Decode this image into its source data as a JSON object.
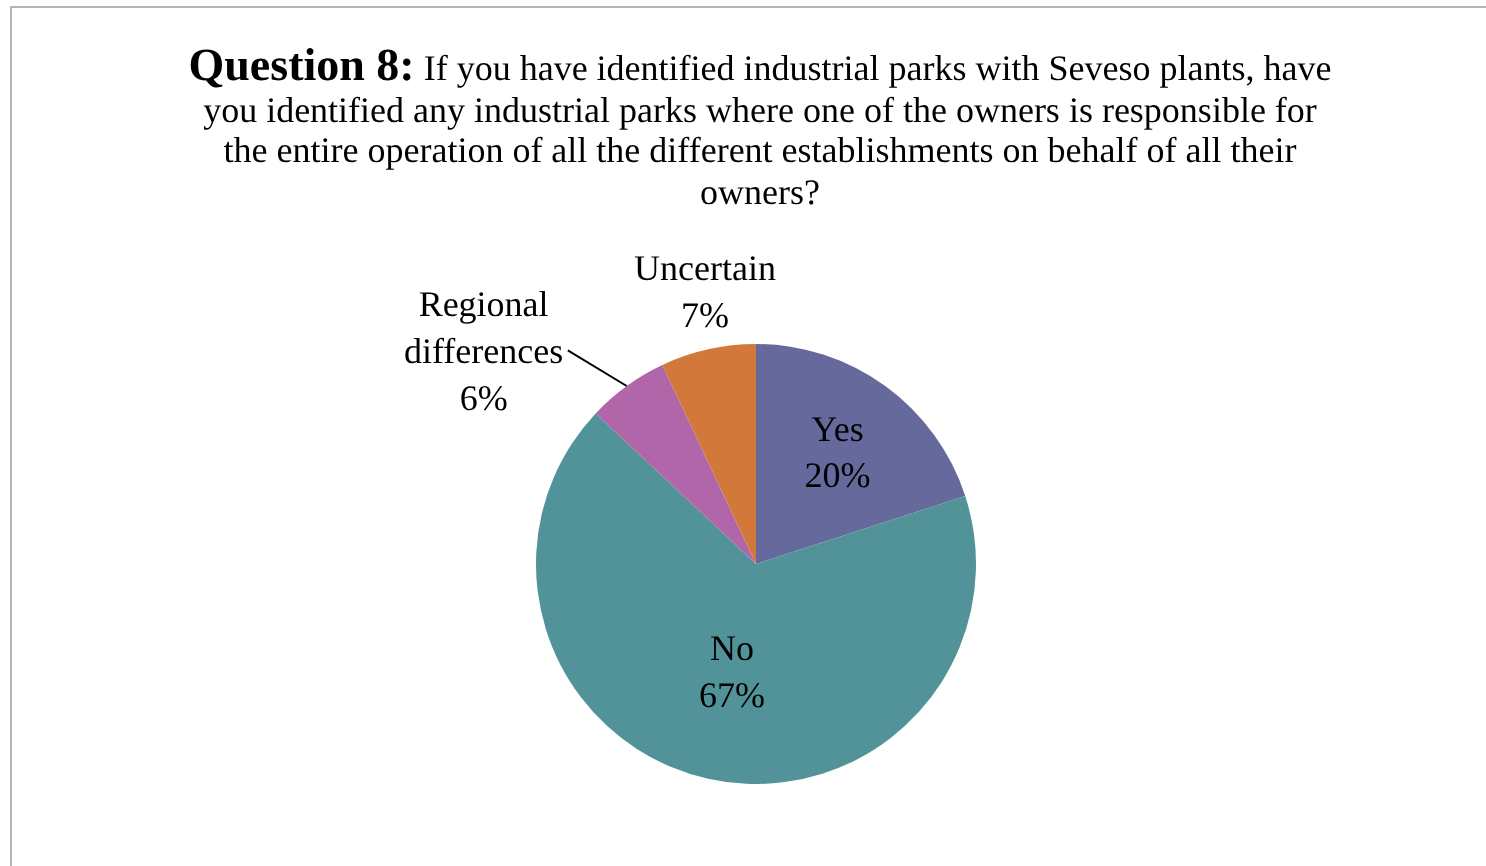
{
  "chart_data": {
    "type": "pie",
    "title": "Question 8: If you have identified industrial parks with Seveso plants, have you identified any industrial parks where one of the owners is responsible for the entire operation of all the different establishments on behalf of all their owners?",
    "categories": [
      "Yes",
      "No",
      "Regional differences",
      "Uncertain"
    ],
    "values": [
      20,
      67,
      6,
      7
    ],
    "colors": [
      "#65699b",
      "#519399",
      "#b066a8",
      "#d2783a"
    ],
    "value_labels": [
      "20%",
      "67%",
      "6%",
      "7%"
    ],
    "legend": false
  }
}
